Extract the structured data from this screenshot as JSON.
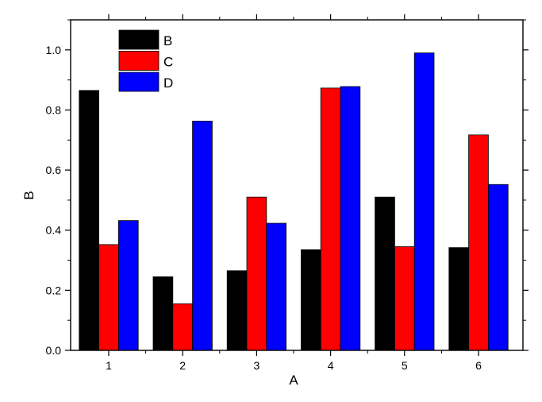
{
  "chart_data": {
    "type": "bar",
    "title": "",
    "xlabel": "A",
    "ylabel": "B",
    "categories": [
      "1",
      "2",
      "3",
      "4",
      "5",
      "6"
    ],
    "series": [
      {
        "name": "B",
        "color": "#000000",
        "values": [
          0.865,
          0.245,
          0.265,
          0.335,
          0.51,
          0.342
        ]
      },
      {
        "name": "C",
        "color": "#ff0000",
        "values": [
          0.352,
          0.155,
          0.51,
          0.873,
          0.345,
          0.717
        ]
      },
      {
        "name": "D",
        "color": "#0000ff",
        "values": [
          0.432,
          0.763,
          0.423,
          0.878,
          0.99,
          0.552
        ]
      }
    ],
    "ylim": [
      0,
      1.1
    ],
    "yticks": [
      "0.0",
      "0.2",
      "0.4",
      "0.6",
      "0.8",
      "1.0"
    ],
    "grid": false,
    "legend_position": "top-left"
  }
}
